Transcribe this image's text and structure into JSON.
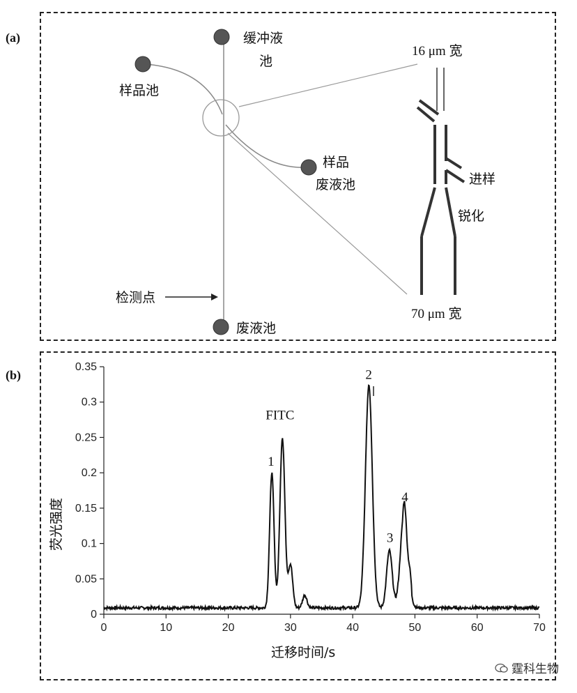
{
  "panel_a": {
    "label": "(a)",
    "buffer_reservoir": "缓冲液",
    "buffer_reservoir_2": "池",
    "sample_reservoir": "样品池",
    "sample_waste": "样品",
    "sample_waste_2": "废液池",
    "waste_reservoir": "废液池",
    "detection_point": "检测点",
    "width_top": "16 μm 宽",
    "width_bottom": "70 μm 宽",
    "injection": "进样",
    "sharpening": "锐化"
  },
  "panel_b": {
    "label": "(b)",
    "chart_data": {
      "type": "line",
      "xlabel": "迁移时间/s",
      "ylabel": "荧光强度",
      "xlim": [
        0,
        70
      ],
      "ylim": [
        0,
        0.35
      ],
      "xticks": [
        "0",
        "10",
        "20",
        "30",
        "40",
        "50",
        "60",
        "70"
      ],
      "yticks": [
        "0",
        "0.05",
        "0.1",
        "0.15",
        "0.2",
        "0.25",
        "0.3",
        "0.35"
      ],
      "baseline": 0.009,
      "peaks": [
        {
          "x": 27.0,
          "y": 0.2,
          "label": "1"
        },
        {
          "x": 28.7,
          "y": 0.25,
          "label": "FITC"
        },
        {
          "x": 30.0,
          "y": 0.07,
          "label": ""
        },
        {
          "x": 32.3,
          "y": 0.027,
          "label": ""
        },
        {
          "x": 42.6,
          "y": 0.325,
          "label": "2"
        },
        {
          "x": 45.9,
          "y": 0.09,
          "label": "3"
        },
        {
          "x": 48.3,
          "y": 0.148,
          "label": "4"
        }
      ]
    }
  },
  "watermark": "霆科生物"
}
